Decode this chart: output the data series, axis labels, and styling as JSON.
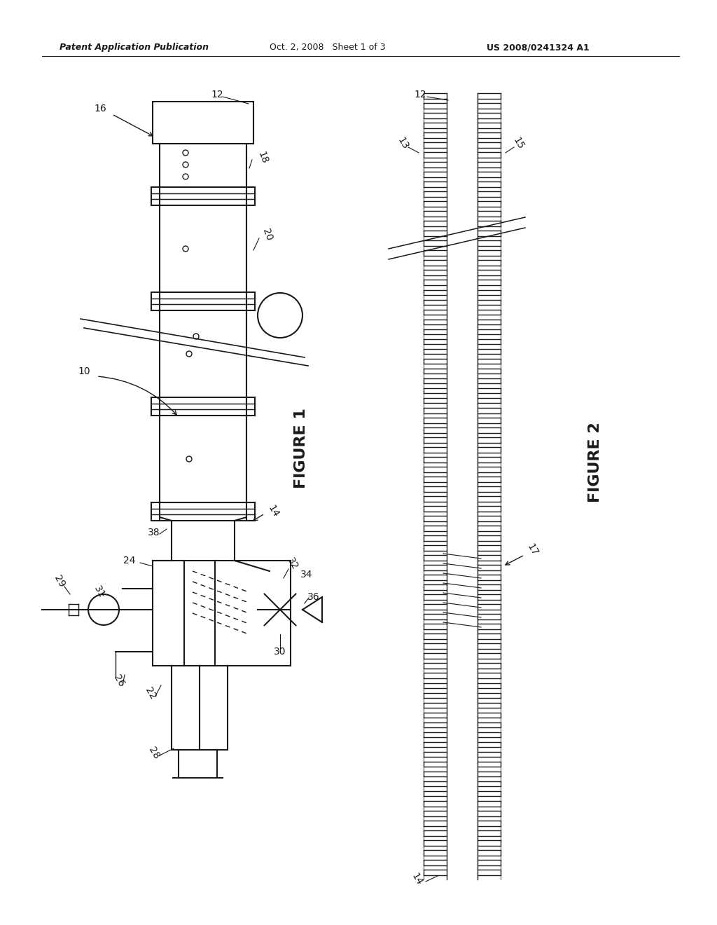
{
  "bg_color": "#ffffff",
  "line_color": "#1a1a1a",
  "header_text1": "Patent Application Publication",
  "header_text2": "Oct. 2, 2008   Sheet 1 of 3",
  "header_text3": "US 2008/0241324 A1",
  "fig1_label": "FIGURE 1",
  "fig2_label": "FIGURE 2"
}
